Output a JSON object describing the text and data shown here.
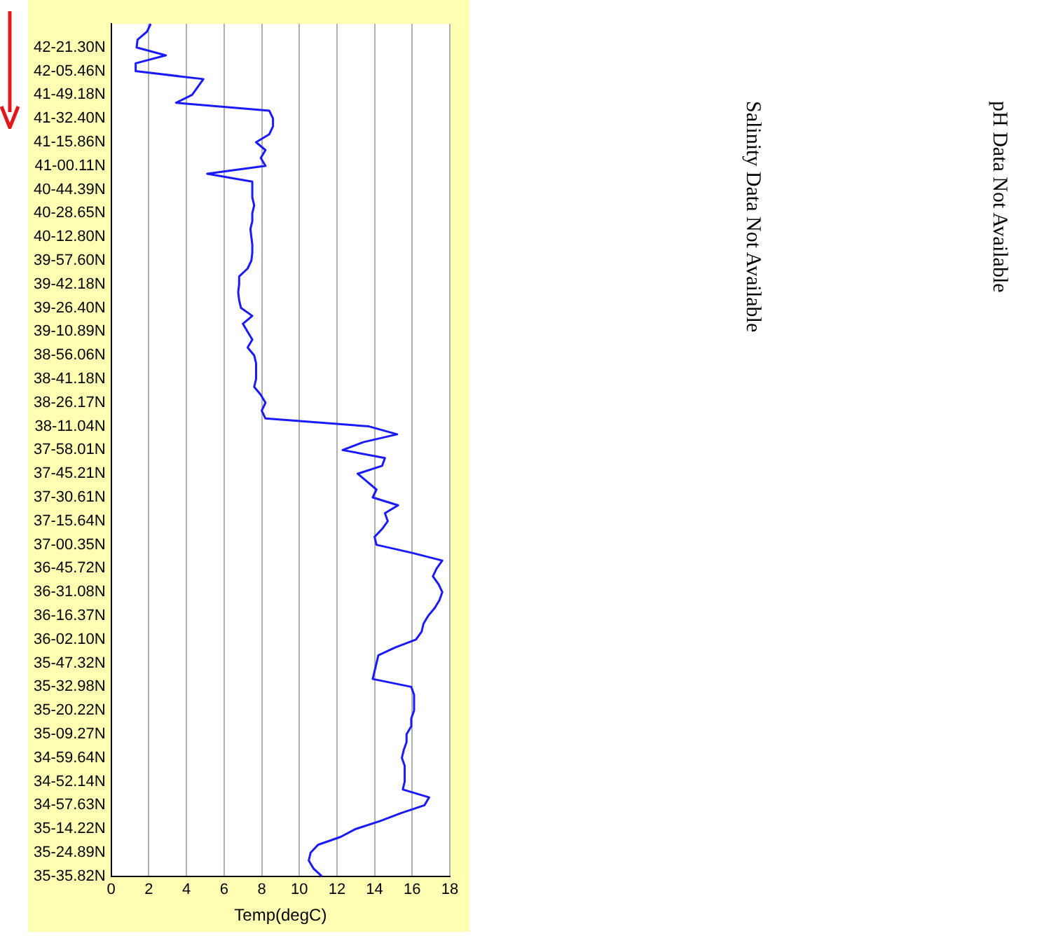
{
  "chart_data": {
    "type": "line",
    "orientation": "horizontal",
    "xlabel": "Temp(degC)",
    "categories": [
      null,
      null,
      null,
      "42-21.30N",
      null,
      null,
      "42-05.46N",
      null,
      null,
      "41-49.18N",
      null,
      null,
      "41-32.40N",
      null,
      null,
      "41-15.86N",
      null,
      null,
      "41-00.11N",
      null,
      null,
      "40-44.39N",
      null,
      null,
      "40-28.65N",
      null,
      null,
      "40-12.80N",
      null,
      null,
      "39-57.60N",
      null,
      null,
      "39-42.18N",
      null,
      null,
      "39-26.40N",
      null,
      null,
      "39-10.89N",
      null,
      null,
      "38-56.06N",
      null,
      null,
      "38-41.18N",
      null,
      null,
      "38-26.17N",
      null,
      null,
      "38-11.04N",
      null,
      null,
      "37-58.01N",
      null,
      null,
      "37-45.21N",
      null,
      null,
      "37-30.61N",
      null,
      null,
      "37-15.64N",
      null,
      null,
      "37-00.35N",
      null,
      null,
      "36-45.72N",
      null,
      null,
      "36-31.08N",
      null,
      null,
      "36-16.37N",
      null,
      null,
      "36-02.10N",
      null,
      null,
      "35-47.32N",
      null,
      null,
      "35-32.98N",
      null,
      null,
      "35-20.22N",
      null,
      null,
      "35-09.27N",
      null,
      null,
      "34-59.64N",
      null,
      null,
      "34-52.14N",
      null,
      null,
      "34-57.63N",
      null,
      null,
      "35-14.22N",
      null,
      null,
      "35-24.89N",
      null,
      null,
      "35-35.82N"
    ],
    "values": [
      2.1,
      1.9,
      1.4,
      1.35,
      2.9,
      1.3,
      1.3,
      4.9,
      4.6,
      4.3,
      3.45,
      8.4,
      8.6,
      8.6,
      8.4,
      7.7,
      8.2,
      7.95,
      8.2,
      5.1,
      7.5,
      7.5,
      7.5,
      7.6,
      7.5,
      7.5,
      7.4,
      7.45,
      7.5,
      7.5,
      7.45,
      7.25,
      6.8,
      6.8,
      6.75,
      6.8,
      6.9,
      7.5,
      7.0,
      7.25,
      7.5,
      7.25,
      7.6,
      7.7,
      7.7,
      7.7,
      7.6,
      7.95,
      8.2,
      8.0,
      8.2,
      13.7,
      15.2,
      13.4,
      12.3,
      14.55,
      14.4,
      13.1,
      13.6,
      14.1,
      13.9,
      15.25,
      14.55,
      14.7,
      14.4,
      14.0,
      14.1,
      15.95,
      17.6,
      17.3,
      17.1,
      17.4,
      17.6,
      17.45,
      17.2,
      16.85,
      16.6,
      16.5,
      16.2,
      15.1,
      14.2,
      14.1,
      14.0,
      13.9,
      15.95,
      16.1,
      16.1,
      16.1,
      15.95,
      15.95,
      15.7,
      15.7,
      15.55,
      15.45,
      15.6,
      15.6,
      15.6,
      15.5,
      16.9,
      16.65,
      15.4,
      14.3,
      13.0,
      12.2,
      11.0,
      10.6,
      10.5,
      10.75,
      11.2
    ],
    "color": "#1a1aff",
    "marker": "none",
    "grid": "x",
    "xlim": [
      0,
      18
    ],
    "xticks": [
      0,
      2,
      4,
      6,
      8,
      10,
      12,
      14,
      16,
      18
    ],
    "annotations": [
      "Salinity Data Not Available",
      "pH Data Not Available"
    ]
  }
}
